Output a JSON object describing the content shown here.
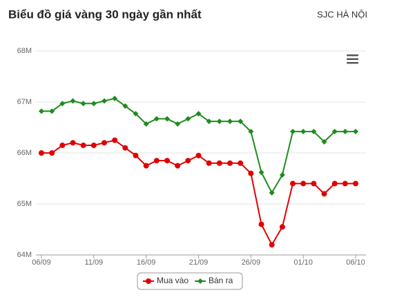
{
  "chart_data": {
    "type": "line",
    "title": "Biểu đồ giá vàng 30 ngày gần nhất",
    "subtitle": "SJC HÀ NỘI",
    "categories": [
      "06/09",
      null,
      null,
      null,
      null,
      "11/09",
      null,
      null,
      null,
      null,
      "16/09",
      null,
      null,
      null,
      null,
      "21/09",
      null,
      null,
      null,
      null,
      "26/09",
      null,
      null,
      null,
      null,
      "01/10",
      null,
      null,
      null,
      null,
      "06/10"
    ],
    "series": [
      {
        "name": "Mua vào",
        "color": "#e00000",
        "values": [
          66.0,
          66.0,
          66.15,
          66.2,
          66.15,
          66.15,
          66.2,
          66.25,
          66.1,
          65.95,
          65.75,
          65.85,
          65.85,
          65.75,
          65.85,
          65.95,
          65.8,
          65.8,
          65.8,
          65.8,
          65.6,
          64.6,
          64.2,
          64.55,
          65.4,
          65.4,
          65.4,
          65.2,
          65.4,
          65.4,
          65.4
        ]
      },
      {
        "name": "Bán ra",
        "color": "#1e8c1e",
        "values": [
          66.82,
          66.82,
          66.97,
          67.02,
          66.97,
          66.97,
          67.02,
          67.07,
          66.92,
          66.77,
          66.57,
          66.67,
          66.67,
          66.57,
          66.67,
          66.77,
          66.62,
          66.62,
          66.62,
          66.62,
          66.42,
          65.62,
          65.22,
          65.57,
          66.42,
          66.42,
          66.42,
          66.22,
          66.42,
          66.42,
          66.42
        ]
      }
    ],
    "ylim": [
      64,
      68
    ],
    "yticks": [
      {
        "value": 64,
        "label": "64M"
      },
      {
        "value": 65,
        "label": "65M"
      },
      {
        "value": 66,
        "label": "66M"
      },
      {
        "value": 67,
        "label": "67M"
      },
      {
        "value": 68,
        "label": "68M"
      }
    ],
    "grid": true,
    "legend": "bottom"
  }
}
